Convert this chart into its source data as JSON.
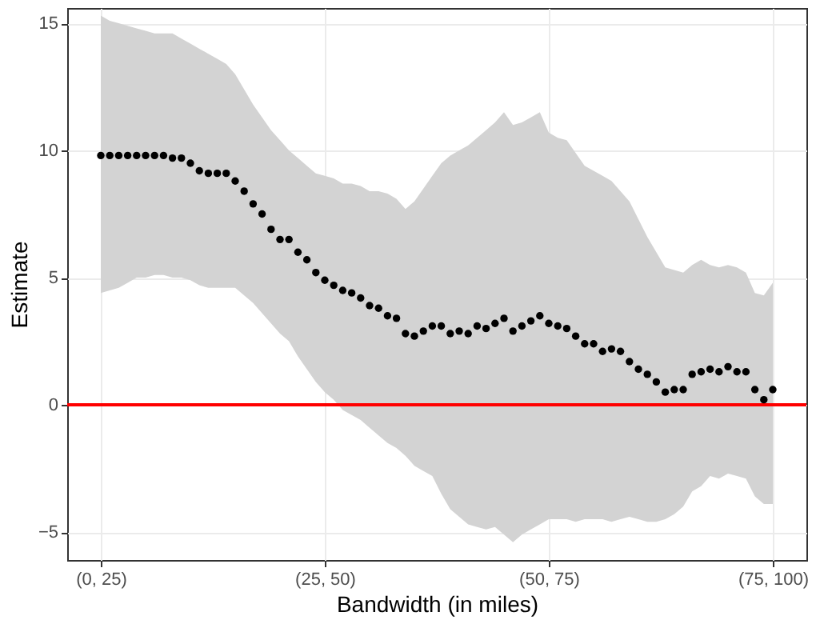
{
  "chart_data": {
    "type": "scatter",
    "xlabel": "Bandwidth (in miles)",
    "ylabel": "Estimate",
    "categories": [
      "(0, 25)",
      null,
      null,
      null,
      null,
      null,
      null,
      null,
      null,
      null,
      null,
      null,
      null,
      null,
      null,
      null,
      null,
      null,
      null,
      null,
      null,
      null,
      null,
      null,
      null,
      "(25, 50)",
      null,
      null,
      null,
      null,
      null,
      null,
      null,
      null,
      null,
      null,
      null,
      null,
      null,
      null,
      null,
      null,
      null,
      null,
      null,
      null,
      null,
      null,
      null,
      null,
      "(50, 75)",
      null,
      null,
      null,
      null,
      null,
      null,
      null,
      null,
      null,
      null,
      null,
      null,
      null,
      null,
      null,
      null,
      null,
      null,
      null,
      null,
      null,
      null,
      null,
      null,
      "(75, 100)"
    ],
    "series": [
      {
        "color": "#000000",
        "values": [
          9.8,
          9.8,
          9.8,
          9.8,
          9.8,
          9.8,
          9.8,
          9.8,
          9.7,
          9.7,
          9.5,
          9.2,
          9.1,
          9.1,
          9.1,
          8.8,
          8.4,
          7.9,
          7.5,
          6.9,
          6.5,
          6.5,
          6.0,
          5.7,
          5.2,
          4.9,
          4.7,
          4.5,
          4.4,
          4.2,
          3.9,
          3.8,
          3.5,
          3.4,
          2.8,
          2.7,
          2.9,
          3.1,
          3.1,
          2.8,
          2.9,
          2.8,
          3.1,
          3.0,
          3.2,
          3.4,
          2.9,
          3.1,
          3.3,
          3.5,
          3.2,
          3.1,
          3.0,
          2.7,
          2.4,
          2.4,
          2.1,
          2.2,
          2.1,
          1.7,
          1.4,
          1.2,
          0.9,
          0.5,
          0.6,
          0.6,
          1.2,
          1.3,
          1.4,
          1.3,
          1.5,
          1.3,
          1.3,
          0.6,
          0.2,
          0.6
        ],
        "lower": [
          4.4,
          4.5,
          4.6,
          4.8,
          5.0,
          5.0,
          5.1,
          5.1,
          5.0,
          5.0,
          4.9,
          4.7,
          4.6,
          4.6,
          4.6,
          4.6,
          4.3,
          4.0,
          3.6,
          3.2,
          2.8,
          2.5,
          1.9,
          1.4,
          0.9,
          0.5,
          0.2,
          -0.2,
          -0.4,
          -0.6,
          -0.9,
          -1.2,
          -1.5,
          -1.7,
          -2.0,
          -2.4,
          -2.6,
          -2.8,
          -3.5,
          -4.1,
          -4.4,
          -4.7,
          -4.8,
          -4.9,
          -4.8,
          -5.1,
          -5.4,
          -5.1,
          -4.9,
          -4.7,
          -4.5,
          -4.5,
          -4.5,
          -4.6,
          -4.5,
          -4.5,
          -4.5,
          -4.6,
          -4.5,
          -4.4,
          -4.5,
          -4.6,
          -4.6,
          -4.5,
          -4.3,
          -4.0,
          -3.4,
          -3.2,
          -2.8,
          -2.9,
          -2.7,
          -2.8,
          -2.9,
          -3.6,
          -3.9,
          -3.9
        ],
        "upper": [
          15.3,
          15.1,
          15.0,
          14.9,
          14.8,
          14.7,
          14.6,
          14.6,
          14.6,
          14.4,
          14.2,
          14.0,
          13.8,
          13.6,
          13.4,
          13.0,
          12.4,
          11.8,
          11.3,
          10.8,
          10.4,
          10.0,
          9.7,
          9.4,
          9.1,
          9.0,
          8.9,
          8.7,
          8.7,
          8.6,
          8.4,
          8.4,
          8.3,
          8.1,
          7.7,
          8.0,
          8.5,
          9.0,
          9.5,
          9.8,
          10.0,
          10.2,
          10.5,
          10.8,
          11.1,
          11.5,
          11.0,
          11.1,
          11.3,
          11.5,
          10.7,
          10.5,
          10.4,
          9.9,
          9.4,
          9.2,
          9.0,
          8.8,
          8.4,
          8.0,
          7.3,
          6.6,
          6.0,
          5.4,
          5.3,
          5.2,
          5.5,
          5.7,
          5.5,
          5.4,
          5.5,
          5.4,
          5.2,
          4.4,
          4.3,
          4.8
        ]
      }
    ],
    "ylim": [
      -6.1,
      15.6
    ],
    "yticks": [
      -5,
      0,
      5,
      10,
      15
    ],
    "ref_lines": [
      {
        "axis": "y",
        "value": 0,
        "color": "#ff0000"
      }
    ],
    "grid": true,
    "marker": "circle"
  }
}
